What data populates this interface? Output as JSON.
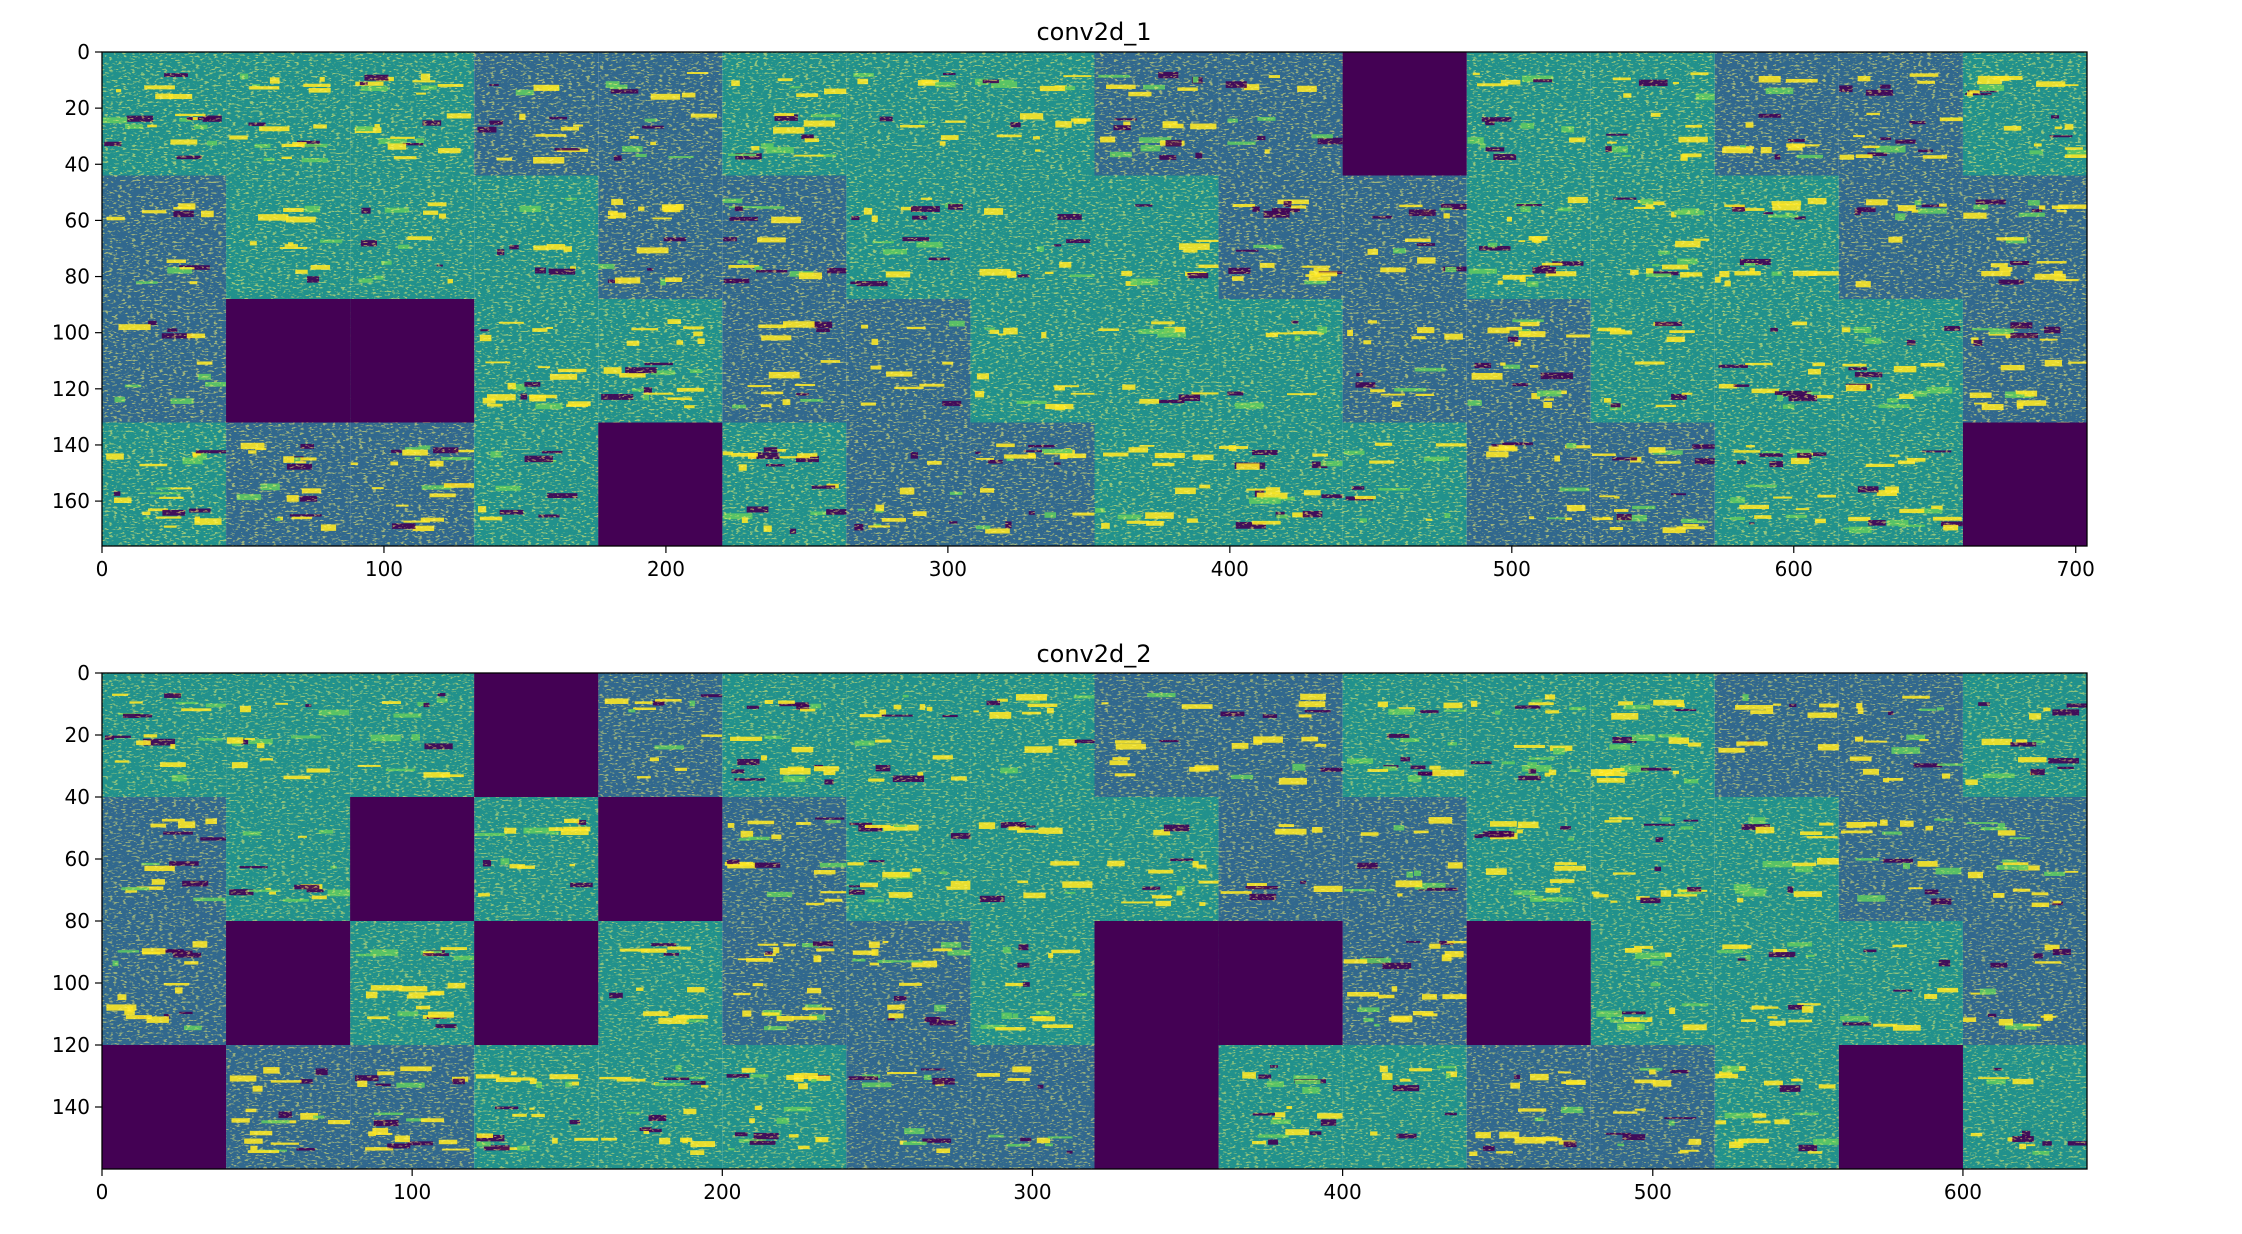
{
  "figure": {
    "colormap": "viridis",
    "colors": {
      "dark": "#440154",
      "teal": "#21918c",
      "blue": "#31688e",
      "green": "#5ec962",
      "yellow": "#fde725",
      "axis": "#000000",
      "background": "#ffffff"
    }
  },
  "chart_data": [
    {
      "type": "heatmap",
      "title": "conv2d_1",
      "xlabel": "",
      "ylabel": "",
      "xlim": [
        0,
        704
      ],
      "ylim": [
        176,
        0
      ],
      "grid": false,
      "x_ticks": [
        0,
        100,
        200,
        300,
        400,
        500,
        600,
        700
      ],
      "y_ticks": [
        0,
        20,
        40,
        60,
        80,
        100,
        120,
        140,
        160
      ],
      "x_tick_labels": [
        "0",
        "100",
        "200",
        "300",
        "400",
        "500",
        "600",
        "700"
      ],
      "y_tick_labels": [
        "0",
        "20",
        "40",
        "60",
        "80",
        "100",
        "120",
        "140",
        "160"
      ],
      "feature_maps": {
        "rows": 4,
        "cols": 16,
        "tile_size": 44,
        "count": 64
      },
      "dead_tiles": [
        [
          0,
          10
        ],
        [
          2,
          1
        ],
        [
          2,
          2
        ],
        [
          3,
          4
        ],
        [
          3,
          15
        ]
      ]
    },
    {
      "type": "heatmap",
      "title": "conv2d_2",
      "xlabel": "",
      "ylabel": "",
      "xlim": [
        0,
        640
      ],
      "ylim": [
        160,
        0
      ],
      "grid": false,
      "x_ticks": [
        0,
        100,
        200,
        300,
        400,
        500,
        600
      ],
      "y_ticks": [
        0,
        20,
        40,
        60,
        80,
        100,
        120,
        140
      ],
      "x_tick_labels": [
        "0",
        "100",
        "200",
        "300",
        "400",
        "500",
        "600"
      ],
      "y_tick_labels": [
        "0",
        "20",
        "40",
        "60",
        "80",
        "100",
        "120",
        "140"
      ],
      "feature_maps": {
        "rows": 4,
        "cols": 16,
        "tile_size": 40,
        "count": 64
      },
      "dead_tiles": [
        [
          0,
          3
        ],
        [
          1,
          2
        ],
        [
          1,
          4
        ],
        [
          2,
          1
        ],
        [
          2,
          3
        ],
        [
          2,
          8
        ],
        [
          2,
          9
        ],
        [
          2,
          11
        ],
        [
          3,
          0
        ],
        [
          3,
          8
        ],
        [
          3,
          14
        ]
      ]
    }
  ]
}
